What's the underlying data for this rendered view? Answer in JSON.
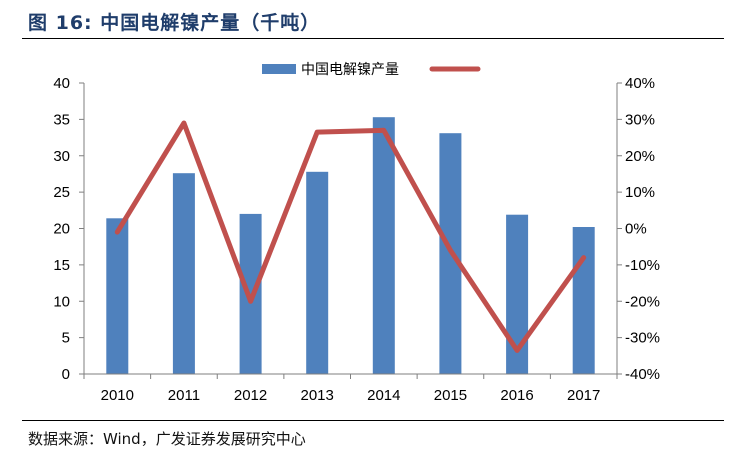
{
  "figure": {
    "title": "图 16:  中国电解镍产量（千吨）",
    "source": "数据来源：Wind，广发证券发展研究中心"
  },
  "colors": {
    "bar": "#4f81bd",
    "line": "#c0504d",
    "title": "#1f3d6b",
    "axis": "#7f7f7f"
  },
  "chart_data": {
    "type": "bar",
    "title": "",
    "xlabel": "",
    "ylabel": "",
    "categories": [
      "2010",
      "2011",
      "2012",
      "2013",
      "2014",
      "2015",
      "2016",
      "2017"
    ],
    "ylim": [
      0,
      40
    ],
    "y_ticks": [
      0,
      5,
      10,
      15,
      20,
      25,
      30,
      35,
      40
    ],
    "y2lim": [
      -40,
      40
    ],
    "y2_ticks": [
      "-40%",
      "-30%",
      "-20%",
      "-10%",
      "0%",
      "10%",
      "20%",
      "30%",
      "40%"
    ],
    "legend_position": "top-center",
    "grid": false,
    "series": [
      {
        "name": "中国电解镍产量",
        "type": "bar",
        "axis": "left",
        "values": [
          21.4,
          27.6,
          22.0,
          27.8,
          35.3,
          33.1,
          21.9,
          20.2
        ]
      },
      {
        "name": "",
        "type": "line",
        "axis": "right",
        "values": [
          -1.0,
          29.0,
          -20.0,
          26.5,
          27.0,
          -6.0,
          -33.5,
          -8.0
        ]
      }
    ]
  }
}
